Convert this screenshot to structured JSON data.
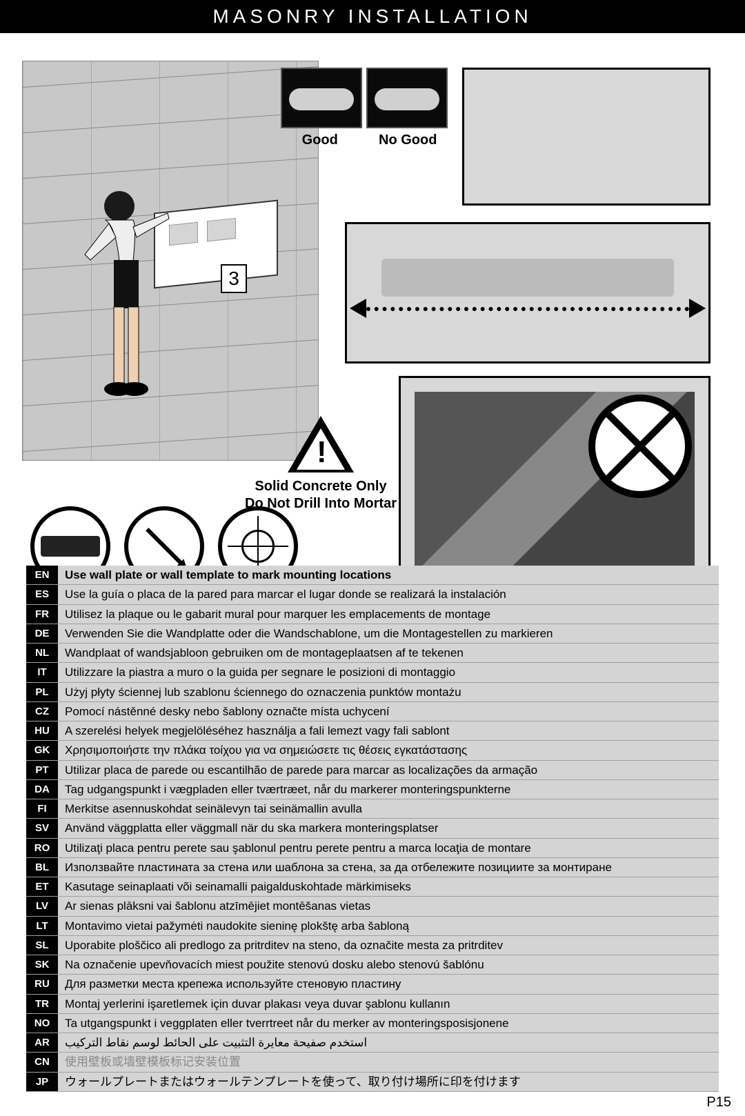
{
  "title": "MASONRY INSTALLATION",
  "step_number": "3",
  "good_label": "Good",
  "nogood_label": "No Good",
  "warning_line1": "Solid Concrete Only",
  "warning_line2": "Do Not Drill Into Mortar",
  "page_number": "P15",
  "colors": {
    "title_bg": "#000000",
    "title_fg": "#ffffff",
    "page_bg": "#ffffff",
    "lang_code_bg": "#000000",
    "lang_code_fg": "#ffffff",
    "lang_row_bg": "#d4d4d4",
    "lang_row_border": "#a0a0a0",
    "photo_border": "#000000",
    "cn_text": "#888888"
  },
  "tool_icons": [
    "level",
    "pencil",
    "target"
  ],
  "languages": [
    {
      "code": "EN",
      "text": "Use wall plate or wall template to mark mounting locations"
    },
    {
      "code": "ES",
      "text": "Use la guía o placa de la pared para marcar el lugar donde se realizará la instalación"
    },
    {
      "code": "FR",
      "text": "Utilisez la plaque ou le gabarit mural pour marquer les emplacements de montage"
    },
    {
      "code": "DE",
      "text": "Verwenden Sie die Wandplatte oder die Wandschablone, um die Montagestellen zu markieren"
    },
    {
      "code": "NL",
      "text": "Wandplaat of wandsjabloon gebruiken om de montageplaatsen af te tekenen"
    },
    {
      "code": "IT",
      "text": "Utilizzare la piastra a muro o la guida per segnare le posizioni di montaggio"
    },
    {
      "code": "PL",
      "text": "Użyj płyty ściennej lub szablonu ściennego do oznaczenia punktów montażu"
    },
    {
      "code": "CZ",
      "text": "Pomocí nástěnné desky nebo šablony označte místa uchycení"
    },
    {
      "code": "HU",
      "text": "A szerelési helyek megjelöléséhez használja a fali lemezt vagy fali sablont"
    },
    {
      "code": "GK",
      "text": "Χρησιμοποιήστε την πλάκα τοίχου για να σημειώσετε τις θέσεις εγκατάστασης"
    },
    {
      "code": "PT",
      "text": "Utilizar placa de parede ou escantilhão de parede para marcar as localizações da armação"
    },
    {
      "code": "DA",
      "text": "Tag udgangspunkt i vægpladen eller tværtræet, når du markerer monteringspunkterne"
    },
    {
      "code": "FI",
      "text": "Merkitse asennuskohdat seinälevyn tai seinämallin avulla"
    },
    {
      "code": "SV",
      "text": "Använd väggplatta eller väggmall när du ska markera monteringsplatser"
    },
    {
      "code": "RO",
      "text": "Utilizaţi placa pentru perete sau şablonul pentru perete pentru a marca locaţia de montare"
    },
    {
      "code": "BL",
      "text": "Използвайте пластината за стена или шаблона за стена, за да отбележите позициите за монтиране"
    },
    {
      "code": "ET",
      "text": "Kasutage seinaplaati või seinamalli paigalduskohtade märkimiseks"
    },
    {
      "code": "LV",
      "text": "Ar sienas plāksni vai šablonu atzīmējiet montēšanas vietas"
    },
    {
      "code": "LT",
      "text": "Montavimo vietai pažymėti naudokite sieninę plokštę arba šabloną"
    },
    {
      "code": "SL",
      "text": "Uporabite ploščico ali predlogo za pritrditev na steno, da označite mesta za pritrditev"
    },
    {
      "code": "SK",
      "text": "Na označenie upevňovacích miest použite stenovú dosku alebo stenovú šablónu"
    },
    {
      "code": "RU",
      "text": "Для разметки места крепежа используйте стеновую пластину"
    },
    {
      "code": "TR",
      "text": "Montaj yerlerini işaretlemek için duvar plakası veya duvar şablonu kullanın"
    },
    {
      "code": "NO",
      "text": "Ta utgangspunkt i veggplaten eller tverrtreet når du merker av monteringsposisjonene"
    },
    {
      "code": "AR",
      "text": "استخدم صفيحة معايرة التثبيت على الحائط لوسم نقاط التركيب"
    },
    {
      "code": "CN",
      "text": "使用壁板或墙壁模板标记安装位置"
    },
    {
      "code": "JP",
      "text": "ウォールプレートまたはウォールテンプレートを使って、取り付け場所に印を付けます"
    }
  ]
}
